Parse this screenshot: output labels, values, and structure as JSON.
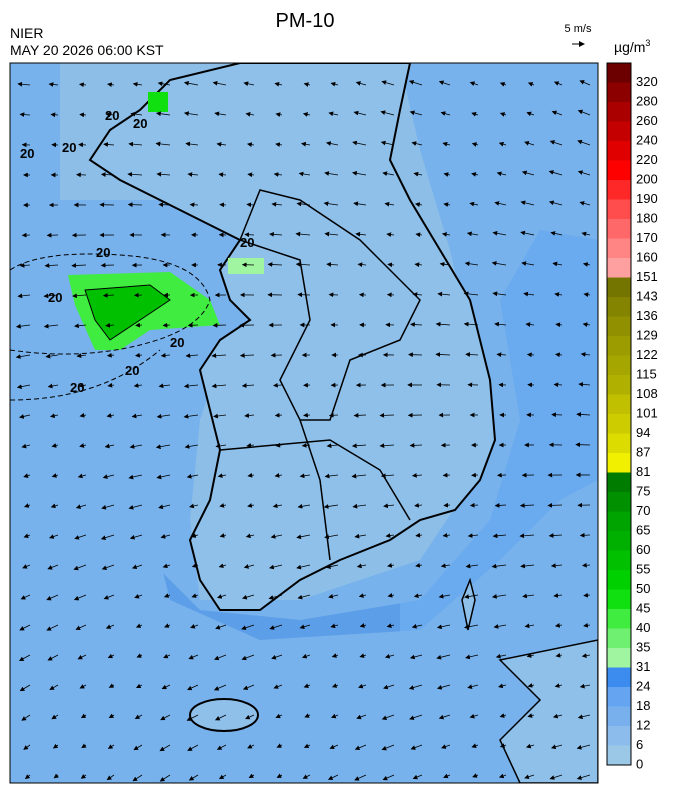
{
  "header": {
    "title": "PM-10",
    "agency": "NIER",
    "datetime": "MAY 20 2026 06:00 KST",
    "wind_scale": "5 m/s",
    "unit": "µg/m",
    "unit_exponent": "3"
  },
  "contour_labels": [
    "20",
    "20",
    "20",
    "20",
    "20",
    "20",
    "20",
    "20",
    "20",
    "20"
  ],
  "legend": {
    "levels": [
      0,
      6,
      12,
      18,
      24,
      31,
      35,
      40,
      45,
      50,
      55,
      60,
      65,
      70,
      75,
      81,
      87,
      94,
      101,
      108,
      115,
      122,
      129,
      136,
      143,
      151,
      160,
      170,
      180,
      190,
      200,
      220,
      240,
      260,
      280,
      320
    ],
    "colors": [
      "#9cc8e8",
      "#8cbcec",
      "#78b0ee",
      "#64a4f0",
      "#3c8cf0",
      "#a0f5a0",
      "#70f070",
      "#40ec40",
      "#10e010",
      "#00d000",
      "#00c000",
      "#00b000",
      "#00a400",
      "#009000",
      "#007c00",
      "#f0f000",
      "#dcdc00",
      "#cccc00",
      "#c0c000",
      "#b0b000",
      "#a6a600",
      "#9c9c00",
      "#909000",
      "#848400",
      "#747400",
      "#ffa0a0",
      "#ff8484",
      "#ff6868",
      "#ff4c4c",
      "#ff2828",
      "#ff0000",
      "#e00000",
      "#c40000",
      "#aa0000",
      "#8c0000",
      "#6c0000"
    ]
  }
}
